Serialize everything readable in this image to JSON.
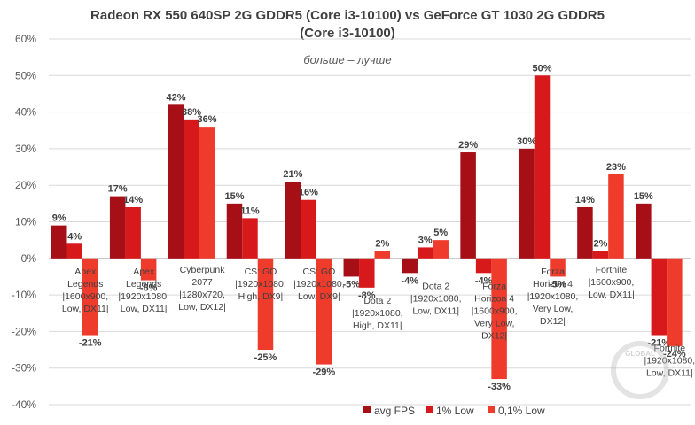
{
  "chart_data": {
    "type": "bar",
    "title_line1": "Radeon RX 550 640SP 2G GDDR5 (Core i3-10100) vs GeForce GT 1030 2G GDDR5",
    "title_line2": "(Core i3-10100)",
    "subtitle": "больше – лучше",
    "ylim": [
      -40,
      60
    ],
    "yticks": [
      "-40%",
      "-30%",
      "-20%",
      "-10%",
      "0%",
      "10%",
      "20%",
      "30%",
      "40%",
      "50%",
      "60%"
    ],
    "grid": true,
    "legend_position": "bottom-right",
    "categories": [
      [
        "Apex",
        "Legends",
        "|1600x900,",
        "Low, DX11|"
      ],
      [
        "Apex",
        "Legends",
        "|1920x1080,",
        "Low, DX11|"
      ],
      [
        "Cyberpunk",
        "2077",
        "|1280x720,",
        "Low, DX12|"
      ],
      [
        "CS: GO",
        "|1920x1080,",
        "High, DX9|"
      ],
      [
        "CS: GO",
        "|1920x1080,",
        "Low, DX9|"
      ],
      [
        "Dota 2",
        "|1920x1080,",
        "High, DX11|"
      ],
      [
        "Dota 2",
        "|1920x1080,",
        "Low, DX11|"
      ],
      [
        "Forza",
        "Horizon 4",
        "|1600x900,",
        "Very Low,",
        "DX12|"
      ],
      [
        "Forza",
        "Horizon 4",
        "|1920x1080,",
        "Very Low,",
        "DX12|"
      ],
      [
        "Fortnite",
        "|1600x900,",
        "Low, DX11|"
      ],
      [
        "Fortnite",
        "|1920x1080,",
        "Low, DX11|"
      ]
    ],
    "series": [
      {
        "name": "avg FPS",
        "color": "#a50f15",
        "values": [
          9,
          17,
          42,
          15,
          21,
          -5,
          -4,
          29,
          30,
          14,
          15
        ]
      },
      {
        "name": "1% Low",
        "color": "#d7191c",
        "values": [
          4,
          14,
          38,
          11,
          16,
          -8,
          3,
          -4,
          50,
          2,
          -21
        ]
      },
      {
        "name": "0,1% Low",
        "color": "#ef3b2c",
        "values": [
          -21,
          -6,
          36,
          -25,
          -29,
          2,
          5,
          -33,
          -5,
          23,
          -24
        ]
      }
    ]
  },
  "watermark": "GLOBAL"
}
